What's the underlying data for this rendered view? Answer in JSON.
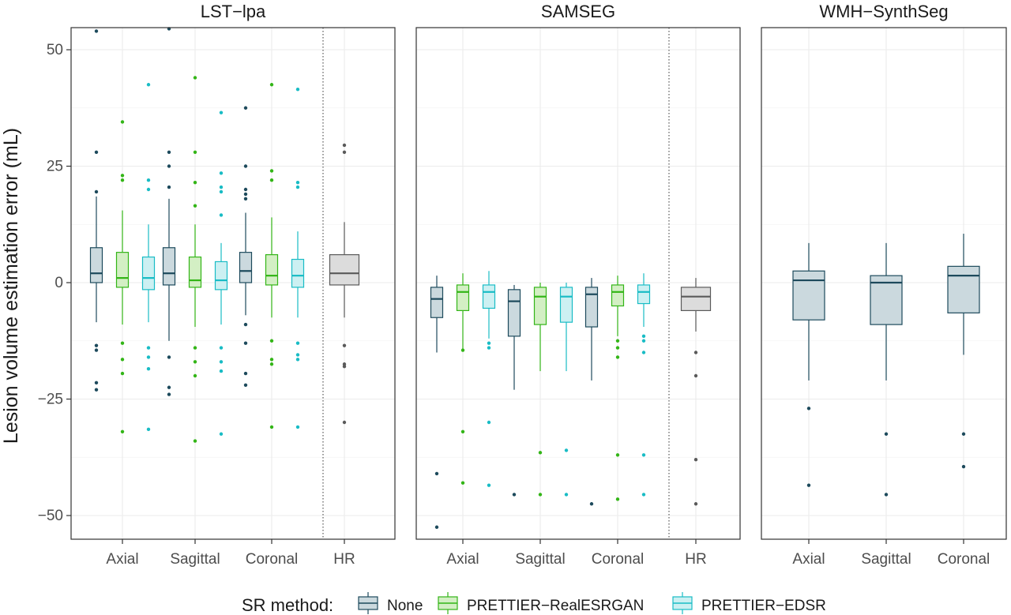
{
  "chart_data": {
    "type": "box",
    "ylabel": "Lesion volume estimation error (mL)",
    "yticks": [
      50,
      25,
      0,
      -25,
      -50
    ],
    "ytick_labels": [
      "50",
      "25",
      "0",
      "−25",
      "−50"
    ],
    "ylim": [
      -55,
      55
    ],
    "grid": true,
    "legend_position": "bottom",
    "legend": {
      "title": "SR method:",
      "entries": [
        {
          "name": "None",
          "fill": "#cbd9de",
          "stroke": "#1d4a5c"
        },
        {
          "name": "PRETTIER−RealESRGAN",
          "fill": "#d3efc4",
          "stroke": "#33b517"
        },
        {
          "name": "PRETTIER−EDSR",
          "fill": "#ccf0f2",
          "stroke": "#19bcc5"
        }
      ]
    },
    "hr_style": {
      "fill": "#dcdcdc",
      "stroke": "#5a5a5a"
    },
    "panels": [
      {
        "title": "LST−lpa",
        "categories": [
          "Axial",
          "Sagittal",
          "Coronal",
          "HR"
        ],
        "separator_before": "HR",
        "groups": [
          {
            "category": "Axial",
            "boxes": [
              {
                "series": "None",
                "whislo": -8.5,
                "q1": 0,
                "med": 2,
                "q3": 7.5,
                "whishi": 18.5,
                "fliers": [
                  54,
                  28,
                  19.5,
                  -13.5,
                  -14.5,
                  -21.5,
                  -23
                ]
              },
              {
                "series": "PRETTIER−RealESRGAN",
                "whislo": -9,
                "q1": -1,
                "med": 1,
                "q3": 6.5,
                "whishi": 15.5,
                "fliers": [
                  34.5,
                  23,
                  22,
                  -13,
                  -16.5,
                  -19.5,
                  -32
                ]
              },
              {
                "series": "PRETTIER−EDSR",
                "whislo": -8.5,
                "q1": -1.5,
                "med": 1,
                "q3": 5.5,
                "whishi": 12.5,
                "fliers": [
                  42.5,
                  22,
                  20,
                  -14,
                  -16,
                  -18.5,
                  -31.5
                ]
              }
            ]
          },
          {
            "category": "Sagittal",
            "boxes": [
              {
                "series": "None",
                "whislo": -12.5,
                "q1": -0.5,
                "med": 2,
                "q3": 7.5,
                "whishi": 18,
                "fliers": [
                  54.5,
                  28,
                  25,
                  20.5,
                  -16,
                  -22.5,
                  -24
                ]
              },
              {
                "series": "PRETTIER−RealESRGAN",
                "whislo": -9.5,
                "q1": -1,
                "med": 0.5,
                "q3": 5.5,
                "whishi": 12.5,
                "fliers": [
                  44,
                  28,
                  21.5,
                  16.5,
                  -14,
                  -17,
                  -20,
                  -34
                ]
              },
              {
                "series": "PRETTIER−EDSR",
                "whislo": -9,
                "q1": -1.5,
                "med": 0.5,
                "q3": 4.5,
                "whishi": 8.5,
                "fliers": [
                  36.5,
                  23.5,
                  20.5,
                  19.5,
                  14.5,
                  -14,
                  -17,
                  -19,
                  -32.5
                ]
              }
            ]
          },
          {
            "category": "Coronal",
            "boxes": [
              {
                "series": "None",
                "whislo": -7,
                "q1": 0,
                "med": 2.5,
                "q3": 6.5,
                "whishi": 15,
                "fliers": [
                  37.5,
                  25,
                  20,
                  19,
                  18,
                  -9,
                  -13,
                  -19.5,
                  -22
                ]
              },
              {
                "series": "PRETTIER−RealESRGAN",
                "whislo": -7.5,
                "q1": -0.5,
                "med": 1.5,
                "q3": 6,
                "whishi": 14,
                "fliers": [
                  42.5,
                  24,
                  22,
                  -12.5,
                  -16.5,
                  -17.5,
                  -31
                ]
              },
              {
                "series": "PRETTIER−EDSR",
                "whislo": -7.5,
                "q1": -1,
                "med": 1.5,
                "q3": 5,
                "whishi": 11,
                "fliers": [
                  41.5,
                  21.5,
                  20.5,
                  -13,
                  -15.5,
                  -16.5,
                  -31
                ]
              }
            ]
          },
          {
            "category": "HR",
            "boxes": [
              {
                "series": "HR",
                "whislo": -7.5,
                "q1": -0.5,
                "med": 2,
                "q3": 6,
                "whishi": 13,
                "fliers": [
                  29.5,
                  28,
                  -13.5,
                  -17.5,
                  -18,
                  -30
                ]
              }
            ]
          }
        ]
      },
      {
        "title": "SAMSEG",
        "categories": [
          "Axial",
          "Sagittal",
          "Coronal",
          "HR"
        ],
        "separator_before": "HR",
        "groups": [
          {
            "category": "Axial",
            "boxes": [
              {
                "series": "None",
                "whislo": -15,
                "q1": -7.5,
                "med": -3.5,
                "q3": -1,
                "whishi": 1.5,
                "fliers": [
                  -41,
                  -52.5
                ]
              },
              {
                "series": "PRETTIER−RealESRGAN",
                "whislo": -14.5,
                "q1": -6,
                "med": -2,
                "q3": -0.5,
                "whishi": 2,
                "fliers": [
                  -14.5,
                  -32,
                  -43
                ]
              },
              {
                "series": "PRETTIER−EDSR",
                "whislo": -12,
                "q1": -5.5,
                "med": -2,
                "q3": -0.5,
                "whishi": 2.5,
                "fliers": [
                  -13,
                  -14,
                  -30,
                  -43.5
                ]
              }
            ]
          },
          {
            "category": "Sagittal",
            "boxes": [
              {
                "series": "None",
                "whislo": -23,
                "q1": -11.5,
                "med": -4,
                "q3": -1.5,
                "whishi": -0.5,
                "fliers": [
                  -45.5
                ]
              },
              {
                "series": "PRETTIER−RealESRGAN",
                "whislo": -19,
                "q1": -9,
                "med": -3,
                "q3": -1,
                "whishi": 0,
                "fliers": [
                  -36.5,
                  -45.5
                ]
              },
              {
                "series": "PRETTIER−EDSR",
                "whislo": -19,
                "q1": -8.5,
                "med": -3,
                "q3": -1,
                "whishi": 0,
                "fliers": [
                  -36,
                  -45.5
                ]
              }
            ]
          },
          {
            "category": "Coronal",
            "boxes": [
              {
                "series": "None",
                "whislo": -21,
                "q1": -9.5,
                "med": -2.5,
                "q3": -1,
                "whishi": 1,
                "fliers": [
                  -47.5
                ]
              },
              {
                "series": "PRETTIER−RealESRGAN",
                "whislo": -11.5,
                "q1": -5,
                "med": -2,
                "q3": -0.5,
                "whishi": 1.5,
                "fliers": [
                  -12.5,
                  -14,
                  -16,
                  -37,
                  -46.5
                ]
              },
              {
                "series": "PRETTIER−EDSR",
                "whislo": -9.5,
                "q1": -4.5,
                "med": -2,
                "q3": -0.5,
                "whishi": 2,
                "fliers": [
                  -11.5,
                  -12.5,
                  -15,
                  -37,
                  -45.5
                ]
              }
            ]
          },
          {
            "category": "HR",
            "boxes": [
              {
                "series": "HR",
                "whislo": -10.5,
                "q1": -6,
                "med": -3,
                "q3": -1,
                "whishi": 1,
                "fliers": [
                  -15,
                  -20,
                  -38,
                  -47.5
                ]
              }
            ]
          }
        ]
      },
      {
        "title": "WMH−SynthSeg",
        "categories": [
          "Axial",
          "Sagittal",
          "Coronal"
        ],
        "separator_before": null,
        "groups": [
          {
            "category": "Axial",
            "boxes": [
              {
                "series": "None",
                "whislo": -21,
                "q1": -8,
                "med": 0.5,
                "q3": 2.5,
                "whishi": 8.5,
                "fliers": [
                  -27,
                  -43.5
                ]
              }
            ]
          },
          {
            "category": "Sagittal",
            "boxes": [
              {
                "series": "None",
                "whislo": -21,
                "q1": -9,
                "med": 0,
                "q3": 1.5,
                "whishi": 8.5,
                "fliers": [
                  -32.5,
                  -45.5
                ]
              }
            ]
          },
          {
            "category": "Coronal",
            "boxes": [
              {
                "series": "None",
                "whislo": -15.5,
                "q1": -6.5,
                "med": 1.5,
                "q3": 3.5,
                "whishi": 10.5,
                "fliers": [
                  -32.5,
                  -39.5
                ]
              }
            ]
          }
        ]
      }
    ]
  }
}
